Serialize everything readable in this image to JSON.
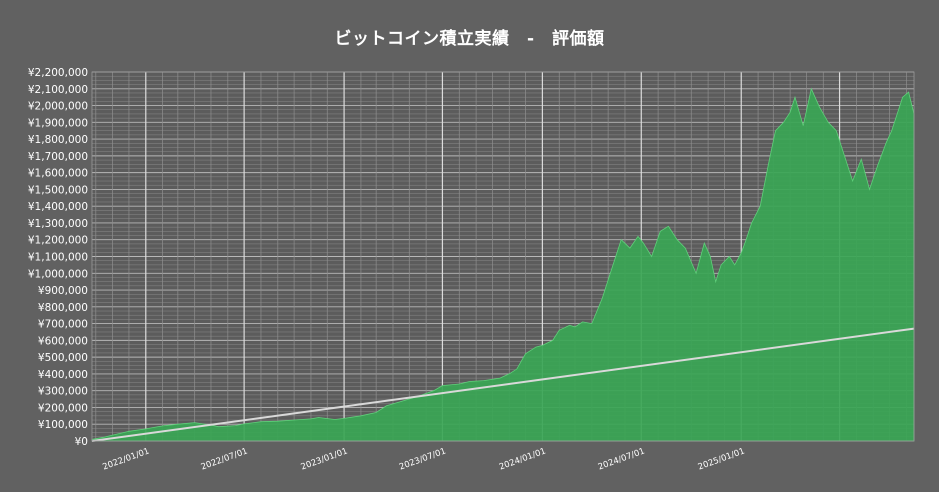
{
  "chart_data": {
    "type": "area",
    "title": "ビットコイン積立実績　-　評価額",
    "xlabel": "",
    "ylabel": "",
    "x_range": [
      "2021/09/24",
      "2025/11/15"
    ],
    "ylim": [
      0,
      2200000
    ],
    "y_step": 100000,
    "grid": true,
    "legend": "none",
    "x_ticks": [
      "2022/01/01",
      "2022/07/01",
      "2023/01/01",
      "2023/07/01",
      "2024/01/01",
      "2024/07/01",
      "2025/01/01"
    ],
    "y_ticks": [
      "¥0",
      "¥100,000",
      "¥200,000",
      "¥300,000",
      "¥400,000",
      "¥500,000",
      "¥600,000",
      "¥700,000",
      "¥800,000",
      "¥900,000",
      "¥1,000,000",
      "¥1,100,000",
      "¥1,200,000",
      "¥1,300,000",
      "¥1,400,000",
      "¥1,500,000",
      "¥1,600,000",
      "¥1,700,000",
      "¥1,800,000",
      "¥1,900,000",
      "¥2,000,000",
      "¥2,100,000",
      "¥2,200,000"
    ],
    "series": [
      {
        "kind": "area",
        "color": "#3aa655",
        "x": [
          "2021/09/24",
          "2021/10/15",
          "2021/11/05",
          "2021/12/01",
          "2022/01/01",
          "2022/02/01",
          "2022/03/01",
          "2022/04/01",
          "2022/05/01",
          "2022/05/15",
          "2022/06/15",
          "2022/07/01",
          "2022/08/01",
          "2022/09/01",
          "2022/10/01",
          "2022/11/01",
          "2022/11/15",
          "2022/12/15",
          "2023/01/01",
          "2023/02/01",
          "2023/03/01",
          "2023/03/20",
          "2023/04/15",
          "2023/05/15",
          "2023/06/15",
          "2023/07/01",
          "2023/08/01",
          "2023/08/20",
          "2023/09/15",
          "2023/10/15",
          "2023/11/01",
          "2023/11/15",
          "2023/12/01",
          "2023/12/20",
          "2024/01/01",
          "2024/01/20",
          "2024/02/01",
          "2024/02/20",
          "2024/03/01",
          "2024/03/15",
          "2024/04/01",
          "2024/04/20",
          "2024/05/10",
          "2024/05/25",
          "2024/06/10",
          "2024/06/25",
          "2024/07/05",
          "2024/07/20",
          "2024/08/05",
          "2024/08/20",
          "2024/09/05",
          "2024/09/20",
          "2024/10/10",
          "2024/10/25",
          "2024/11/05",
          "2024/11/15",
          "2024/11/25",
          "2024/12/10",
          "2024/12/20",
          "2025/01/01",
          "2025/01/10",
          "2025/01/20",
          "2025/02/05",
          "2025/02/20",
          "2025/03/05",
          "2025/03/20",
          "2025/04/01",
          "2025/04/10",
          "2025/04/25",
          "2025/05/10",
          "2025/05/25",
          "2025/06/10",
          "2025/06/25",
          "2025/07/10",
          "2025/07/25",
          "2025/08/10",
          "2025/08/25",
          "2025/09/10",
          "2025/09/25",
          "2025/10/05",
          "2025/10/15",
          "2025/10/25",
          "2025/11/05",
          "2025/11/15"
        ],
        "values": [
          10000,
          22000,
          38000,
          58000,
          72000,
          90000,
          100000,
          110000,
          95000,
          85000,
          92000,
          102000,
          115000,
          118000,
          125000,
          132000,
          140000,
          128000,
          135000,
          150000,
          170000,
          210000,
          235000,
          265000,
          300000,
          330000,
          340000,
          355000,
          360000,
          375000,
          400000,
          430000,
          520000,
          560000,
          570000,
          600000,
          660000,
          690000,
          680000,
          710000,
          700000,
          850000,
          1050000,
          1200000,
          1150000,
          1220000,
          1180000,
          1100000,
          1250000,
          1280000,
          1200000,
          1150000,
          1000000,
          1180000,
          1100000,
          950000,
          1050000,
          1100000,
          1050000,
          1120000,
          1200000,
          1300000,
          1400000,
          1650000,
          1850000,
          1900000,
          1960000,
          2050000,
          1880000,
          2100000,
          1990000,
          1900000,
          1850000,
          1700000,
          1550000,
          1680000,
          1500000,
          1650000,
          1780000,
          1850000,
          1950000,
          2050000,
          2080000,
          1950000
        ]
      },
      {
        "kind": "line",
        "color": "#d9d9d9",
        "x": [
          "2021/09/24",
          "2025/11/15"
        ],
        "values": [
          0,
          670000
        ]
      }
    ]
  }
}
